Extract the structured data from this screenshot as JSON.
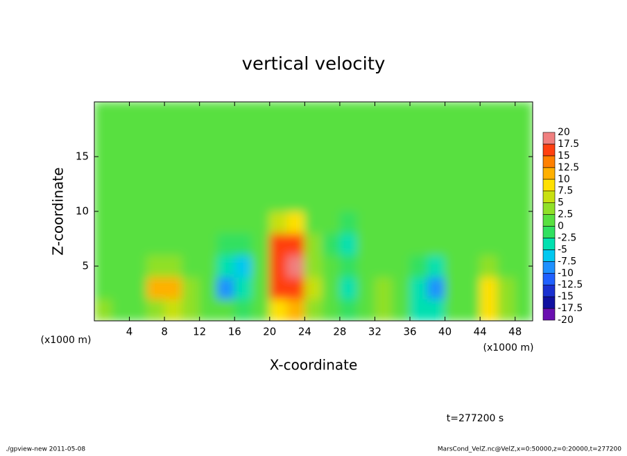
{
  "chart_data": {
    "type": "heatmap",
    "title": "vertical velocity",
    "xlabel": "X-coordinate",
    "ylabel": "Z-coordinate",
    "x_unit": "(x1000 m)",
    "y_unit": "(x1000 m)",
    "time_label": "t=277200 s",
    "footer_left": "./gpview-new  2011-05-08",
    "footer_right": "MarsCond_VelZ.nc@VelZ,x=0:50000,z=0:20000,t=277200",
    "xlim": [
      0,
      50
    ],
    "ylim": [
      0,
      20
    ],
    "xticks": [
      4,
      8,
      12,
      16,
      20,
      24,
      28,
      32,
      36,
      40,
      44,
      48
    ],
    "yticks": [
      5,
      10,
      15
    ],
    "x": [
      1,
      3,
      5,
      7,
      9,
      11,
      13,
      15,
      17,
      19,
      21,
      23,
      25,
      27,
      29,
      31,
      33,
      35,
      37,
      39,
      41,
      43,
      45,
      47,
      49
    ],
    "y": [
      1,
      3,
      5,
      7,
      9,
      11,
      13,
      15,
      17,
      19
    ],
    "z": [
      [
        3,
        2,
        1,
        4,
        7,
        3,
        2,
        1,
        -2,
        0,
        8,
        10,
        3,
        0,
        -2,
        2,
        4,
        1,
        -5,
        -3,
        0,
        2,
        9,
        3,
        1
      ],
      [
        2,
        1,
        2,
        10,
        11,
        4,
        1,
        -8,
        -4,
        1,
        16,
        17,
        5,
        1,
        -3,
        1,
        4,
        0,
        -3,
        -8,
        0,
        2,
        8,
        4,
        1
      ],
      [
        1,
        1,
        2,
        4,
        4,
        2,
        0,
        -3,
        -7,
        0,
        17,
        18,
        4,
        0,
        -2,
        1,
        1,
        0,
        -1,
        -3,
        0,
        1,
        3,
        2,
        1
      ],
      [
        1,
        1,
        1,
        2,
        1,
        1,
        0,
        -1,
        -2,
        1,
        15,
        16,
        3,
        -2,
        -5,
        0,
        1,
        0,
        0,
        0,
        1,
        1,
        1,
        1,
        0
      ],
      [
        1,
        1,
        1,
        1,
        1,
        1,
        0,
        0,
        0,
        1,
        7,
        8,
        2,
        0,
        -1,
        0,
        1,
        1,
        0,
        0,
        1,
        1,
        1,
        1,
        1
      ],
      [
        1,
        1,
        1,
        1,
        1,
        1,
        1,
        1,
        1,
        1,
        2,
        2,
        1,
        1,
        1,
        1,
        1,
        1,
        1,
        1,
        1,
        1,
        1,
        1,
        1
      ],
      [
        1,
        1,
        1,
        1,
        1,
        1,
        1,
        1,
        1,
        1,
        1,
        1,
        1,
        1,
        1,
        1,
        1,
        1,
        1,
        1,
        1,
        1,
        1,
        1,
        1
      ],
      [
        1,
        1,
        1,
        1,
        1,
        1,
        1,
        1,
        1,
        1,
        1,
        1,
        1,
        1,
        1,
        1,
        1,
        1,
        1,
        1,
        1,
        1,
        1,
        1,
        1
      ],
      [
        1,
        1,
        1,
        1,
        1,
        1,
        1,
        1,
        1,
        1,
        1,
        1,
        1,
        1,
        1,
        1,
        1,
        1,
        1,
        1,
        1,
        1,
        1,
        1,
        1
      ],
      [
        1,
        1,
        1,
        1,
        1,
        1,
        1,
        1,
        1,
        1,
        1,
        1,
        1,
        1,
        1,
        1,
        1,
        1,
        1,
        1,
        1,
        1,
        1,
        1,
        1
      ]
    ],
    "levels": [
      -20,
      -17.5,
      -15,
      -12.5,
      -10,
      -7.5,
      -5,
      -2.5,
      0,
      2.5,
      5,
      7.5,
      10,
      12.5,
      15,
      17.5,
      20
    ],
    "colors": [
      "#6a10b0",
      "#1010a0",
      "#1a30d0",
      "#2060ff",
      "#1e90ff",
      "#00c8f0",
      "#00e0b0",
      "#30e060",
      "#58e040",
      "#90e028",
      "#c8e010",
      "#ffe000",
      "#ffb000",
      "#ff8000",
      "#ff4010",
      "#f08080"
    ]
  }
}
